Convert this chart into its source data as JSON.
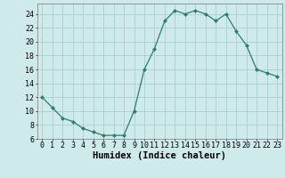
{
  "x": [
    0,
    1,
    2,
    3,
    4,
    5,
    6,
    7,
    8,
    9,
    10,
    11,
    12,
    13,
    14,
    15,
    16,
    17,
    18,
    19,
    20,
    21,
    22,
    23
  ],
  "y": [
    12,
    10.5,
    9,
    8.5,
    7.5,
    7,
    6.5,
    6.5,
    6.5,
    10,
    16,
    19,
    23,
    24.5,
    24,
    24.5,
    24,
    23,
    24,
    21.5,
    19.5,
    16,
    15.5,
    15
  ],
  "line_color": "#2e7d6e",
  "marker": "D",
  "marker_size": 2.0,
  "background_color": "#ceeaea",
  "grid_color": "#aacece",
  "xlabel": "Humidex (Indice chaleur)",
  "xlim": [
    -0.5,
    23.5
  ],
  "ylim": [
    6,
    25.5
  ],
  "yticks": [
    6,
    8,
    10,
    12,
    14,
    16,
    18,
    20,
    22,
    24
  ],
  "xticks": [
    0,
    1,
    2,
    3,
    4,
    5,
    6,
    7,
    8,
    9,
    10,
    11,
    12,
    13,
    14,
    15,
    16,
    17,
    18,
    19,
    20,
    21,
    22,
    23
  ],
  "tick_fontsize": 6.0,
  "xlabel_fontsize": 7.5
}
